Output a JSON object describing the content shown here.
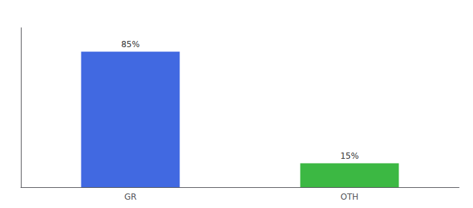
{
  "chart_data": {
    "type": "bar",
    "categories": [
      "GR",
      "OTH"
    ],
    "values": [
      85,
      15
    ],
    "value_labels": [
      "85%",
      "15%"
    ],
    "colors": [
      "#4169e1",
      "#3cb843"
    ],
    "ylim": [
      0,
      100
    ],
    "yticks": [],
    "tick_labels": "x",
    "data_labels": true,
    "grid": false
  }
}
